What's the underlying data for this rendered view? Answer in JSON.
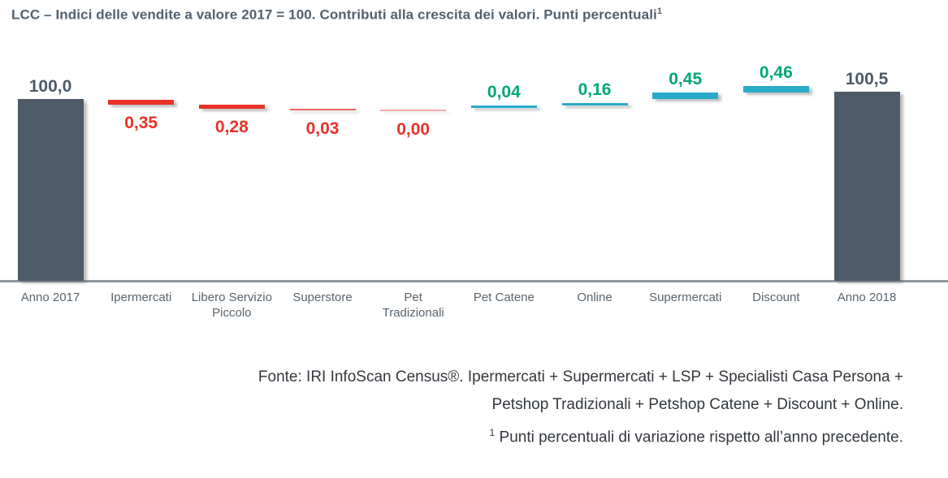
{
  "title": {
    "text": "LCC – Indici delle vendite a valore 2017 = 100. Contributi alla crescita dei valori. Punti percentuali",
    "footnote_mark": "1"
  },
  "chart_data": {
    "type": "bar",
    "variant": "waterfall",
    "title": "LCC – Indici delle vendite a valore 2017 = 100. Contributi alla crescita dei valori. Punti percentuali",
    "unit": "punti percentuali",
    "baseline_value": 100.0,
    "axis": {
      "x_axis_line": true,
      "y_axis_visible": false,
      "gridlines": false,
      "legend": "none"
    },
    "columns": [
      {
        "label": "Anno 2017",
        "kind": "total",
        "value": 100.0,
        "display": "100,0"
      },
      {
        "label": "Ipermercati",
        "kind": "decrease",
        "value": 0.35,
        "display": "0,35"
      },
      {
        "label": "Libero Servizio Piccolo",
        "kind": "decrease",
        "value": 0.28,
        "display": "0,28"
      },
      {
        "label": "Superstore",
        "kind": "decrease",
        "value": 0.03,
        "display": "0,03"
      },
      {
        "label": "Pet Tradizionali",
        "kind": "decrease",
        "value": 0.0,
        "display": "0,00"
      },
      {
        "label": "Pet Catene",
        "kind": "increase",
        "value": 0.04,
        "display": "0,04"
      },
      {
        "label": "Online",
        "kind": "increase",
        "value": 0.16,
        "display": "0,16"
      },
      {
        "label": "Supermercati",
        "kind": "increase",
        "value": 0.45,
        "display": "0,45"
      },
      {
        "label": "Discount",
        "kind": "increase",
        "value": 0.46,
        "display": "0,46"
      },
      {
        "label": "Anno 2018",
        "kind": "total",
        "value": 100.5,
        "display": "100,5"
      }
    ],
    "colors": {
      "total_bar": "#4d5a67",
      "total_label": "#4c5a68",
      "decrease_bar": "#e93128",
      "decrease_label": "#e93128",
      "increase_bar": "#29abc8",
      "increase_label": "#00a677",
      "axis_line": "#8e979d"
    }
  },
  "footer": {
    "line1": "Fonte: IRI InfoScan Census®. Ipermercati + Supermercati + LSP + Specialisti Casa Persona +",
    "line2": "Petshop Tradizionali + Petshop Catene + Discount + Online.",
    "footnote_mark": "1",
    "line3": "Punti percentuali di variazione rispetto all’anno precedente."
  }
}
